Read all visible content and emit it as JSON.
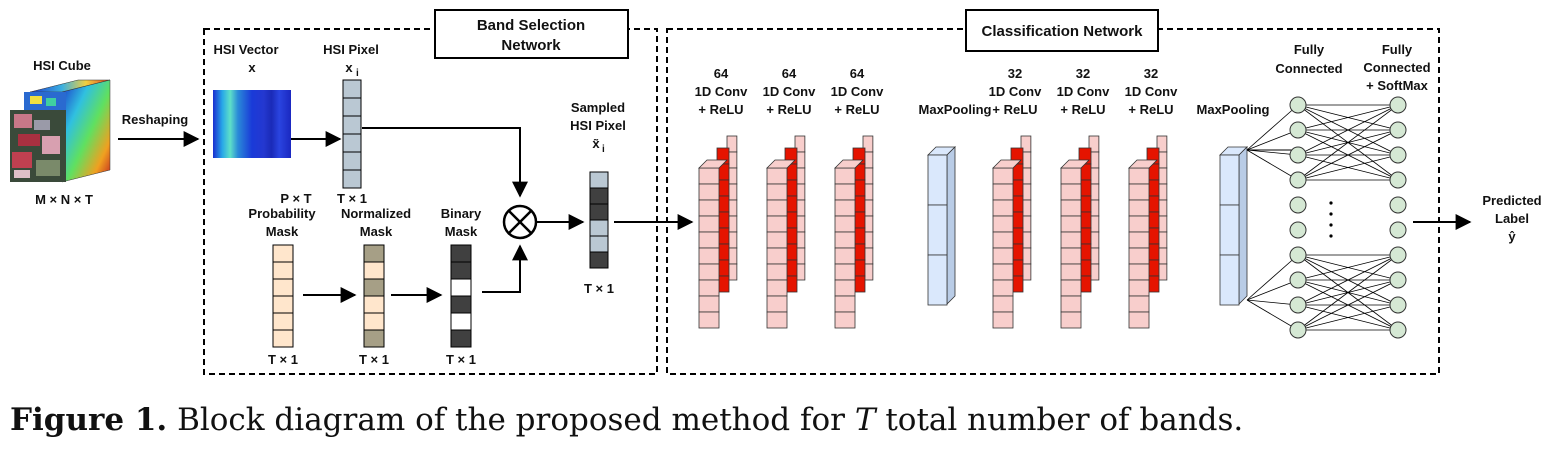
{
  "diagram": {
    "hsi_cube": {
      "title": "HSI Cube",
      "dims": "M × N × T"
    },
    "reshaping_label": "Reshaping",
    "band_selection_title": [
      "Band Selection",
      "Network"
    ],
    "classification_title": "Classification Network",
    "hsi_vector": {
      "label": "HSI Vector",
      "symbol": "x",
      "dims": "P × T"
    },
    "hsi_pixel": {
      "label": "HSI Pixel",
      "symbol": "x",
      "sub": "i",
      "dims": "T × 1"
    },
    "probability_mask": {
      "label": [
        "Probability",
        "Mask"
      ],
      "dims": "T × 1"
    },
    "normalized_mask": {
      "label": [
        "Normalized",
        "Mask"
      ],
      "dims": "T × 1"
    },
    "binary_mask": {
      "label": [
        "Binary",
        "Mask"
      ],
      "dims": "T × 1"
    },
    "multiply_symbol": "⊗",
    "sampled_pixel": {
      "label": [
        "Sampled",
        "HSI Pixel"
      ],
      "symbol": "x̃",
      "sub": "i",
      "dims": "T × 1"
    },
    "conv_blocks_first": [
      {
        "filters": "64",
        "label": [
          "1D Conv",
          "+ ReLU"
        ]
      },
      {
        "filters": "64",
        "label": [
          "1D Conv",
          "+ ReLU"
        ]
      },
      {
        "filters": "64",
        "label": [
          "1D Conv",
          "+ ReLU"
        ]
      }
    ],
    "maxpool_label_1": "MaxPooling",
    "conv_blocks_second": [
      {
        "filters": "32",
        "label": [
          "1D Conv",
          "+ ReLU"
        ]
      },
      {
        "filters": "32",
        "label": [
          "1D Conv",
          "+ ReLU"
        ]
      },
      {
        "filters": "32",
        "label": [
          "1D Conv",
          "+ ReLU"
        ]
      }
    ],
    "maxpool_label_2": "MaxPooling",
    "fc1_label": [
      "Fully",
      "Connected"
    ],
    "fc2_label": [
      "Fully",
      "Connected",
      "+ SoftMax"
    ],
    "ellipsis": "·\n·\n·\n·",
    "output": {
      "label": [
        "Predicted",
        "Label"
      ],
      "symbol": "ŷ"
    }
  },
  "caption": {
    "figure_label": "Figure 1.",
    "text_before": " Block diagram of the proposed method for ",
    "variable": "T",
    "text_after": " total number of bands."
  },
  "colors": {
    "conv_light": "#f8cecc",
    "conv_dark": "#e51400",
    "pool": "#dae8fc",
    "prob_mask": "#ffe6cc",
    "node": "#d5e8d4",
    "pixel": "#bac8d3"
  }
}
